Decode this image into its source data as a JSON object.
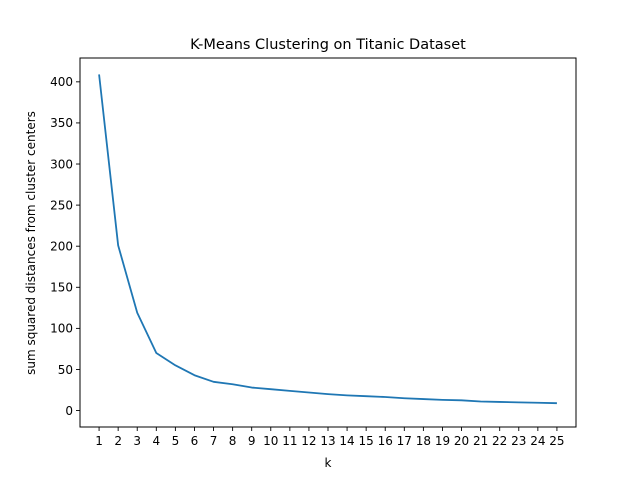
{
  "chart_data": {
    "type": "line",
    "title": "K-Means Clustering on Titanic Dataset",
    "xlabel": "k",
    "ylabel": "sum squared distances from cluster centers",
    "x": [
      1,
      2,
      3,
      4,
      5,
      6,
      7,
      8,
      9,
      10,
      11,
      12,
      13,
      14,
      15,
      16,
      17,
      18,
      19,
      20,
      21,
      22,
      23,
      24,
      25
    ],
    "series": [
      {
        "values": [
          409,
          201,
          119,
          70,
          55,
          43,
          35,
          32,
          28,
          26,
          24,
          22,
          20,
          18.5,
          17.5,
          16.5,
          15,
          14,
          13,
          12.5,
          11,
          10.5,
          10,
          9.5,
          9
        ]
      }
    ],
    "xlim": [
      0,
      26
    ],
    "ylim": [
      -20,
      429
    ],
    "yticks": [
      0,
      50,
      100,
      150,
      200,
      250,
      300,
      350,
      400
    ],
    "grid": false,
    "line_color": "#1f77b4"
  }
}
